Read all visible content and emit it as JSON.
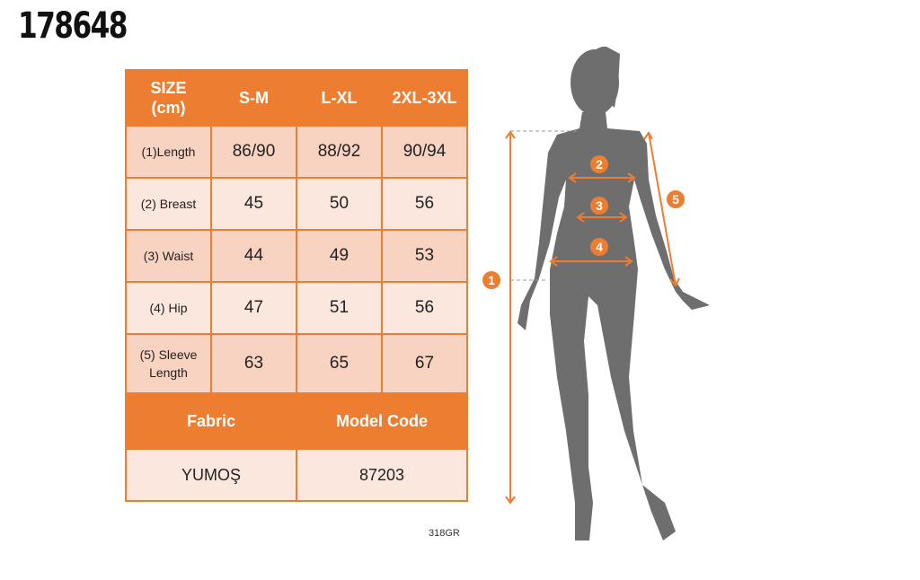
{
  "product_code": "178648",
  "table": {
    "header": [
      "SIZE (cm)",
      "S-M",
      "L-XL",
      "2XL-3XL"
    ],
    "rows": [
      {
        "label": "(1)Length",
        "values": [
          "86/90",
          "88/92",
          "90/94"
        ]
      },
      {
        "label": "(2) Breast",
        "values": [
          "45",
          "50",
          "56"
        ]
      },
      {
        "label": "(3) Waist",
        "values": [
          "44",
          "49",
          "53"
        ]
      },
      {
        "label": "(4) Hip",
        "values": [
          "47",
          "51",
          "56"
        ]
      },
      {
        "label": "(5) Sleeve Length",
        "values": [
          "63",
          "65",
          "67"
        ]
      }
    ],
    "fabric_label": "Fabric",
    "model_code_label": "Model Code",
    "fabric_value": "YUMOŞ",
    "model_code_value": "87203"
  },
  "footnote": "318GR",
  "figure": {
    "markers": [
      "1",
      "2",
      "3",
      "4",
      "5"
    ],
    "icon": "body-silhouette-icon"
  },
  "colors": {
    "accent": "#ED7D31",
    "row_dark": "#F8D3C2",
    "row_light": "#FBE7DE",
    "silhouette": "#6E6E6E"
  }
}
